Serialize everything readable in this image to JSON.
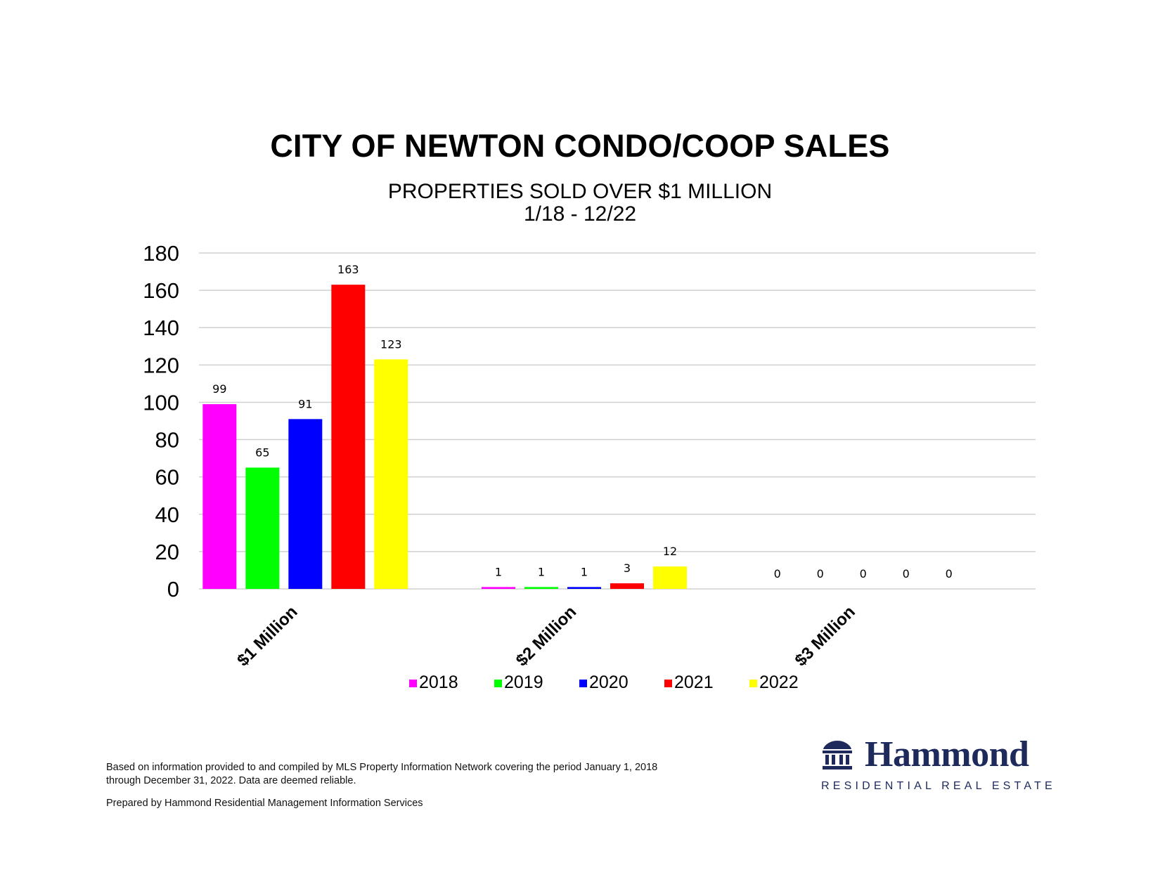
{
  "chart_data": {
    "type": "bar",
    "title": "CITY OF NEWTON CONDO/COOP SALES",
    "subtitle_lines": [
      "PROPERTIES SOLD OVER $1 MILLION",
      "1/18 - 12/22"
    ],
    "categories": [
      "$1 Million",
      "$2 Million",
      "$3 Million"
    ],
    "series": [
      {
        "name": "2018",
        "color": "#ff00ff",
        "values": [
          99,
          1,
          0
        ]
      },
      {
        "name": "2019",
        "color": "#00ff00",
        "values": [
          65,
          1,
          0
        ]
      },
      {
        "name": "2020",
        "color": "#0000ff",
        "values": [
          91,
          1,
          0
        ]
      },
      {
        "name": "2021",
        "color": "#ff0000",
        "values": [
          163,
          3,
          0
        ]
      },
      {
        "name": "2022",
        "color": "#ffff00",
        "values": [
          123,
          12,
          0
        ]
      }
    ],
    "yticks": [
      0,
      20,
      40,
      60,
      80,
      100,
      120,
      140,
      160,
      180
    ],
    "ylim": [
      0,
      180
    ],
    "grid": true,
    "legend": "bottom",
    "data_labels": true
  },
  "footnotes": {
    "source_line1": "Based on information provided to and compiled by MLS Property Information Network covering the period January 1, 2018",
    "source_line2": "through December 31, 2022. Data are deemed reliable.",
    "prepared_by": "Prepared by Hammond Residential Management Information Services"
  },
  "logo": {
    "name": "Hammond",
    "tagline": "RESIDENTIAL REAL ESTATE",
    "color": "#1f2a5c",
    "icon": "building-columns-icon"
  }
}
